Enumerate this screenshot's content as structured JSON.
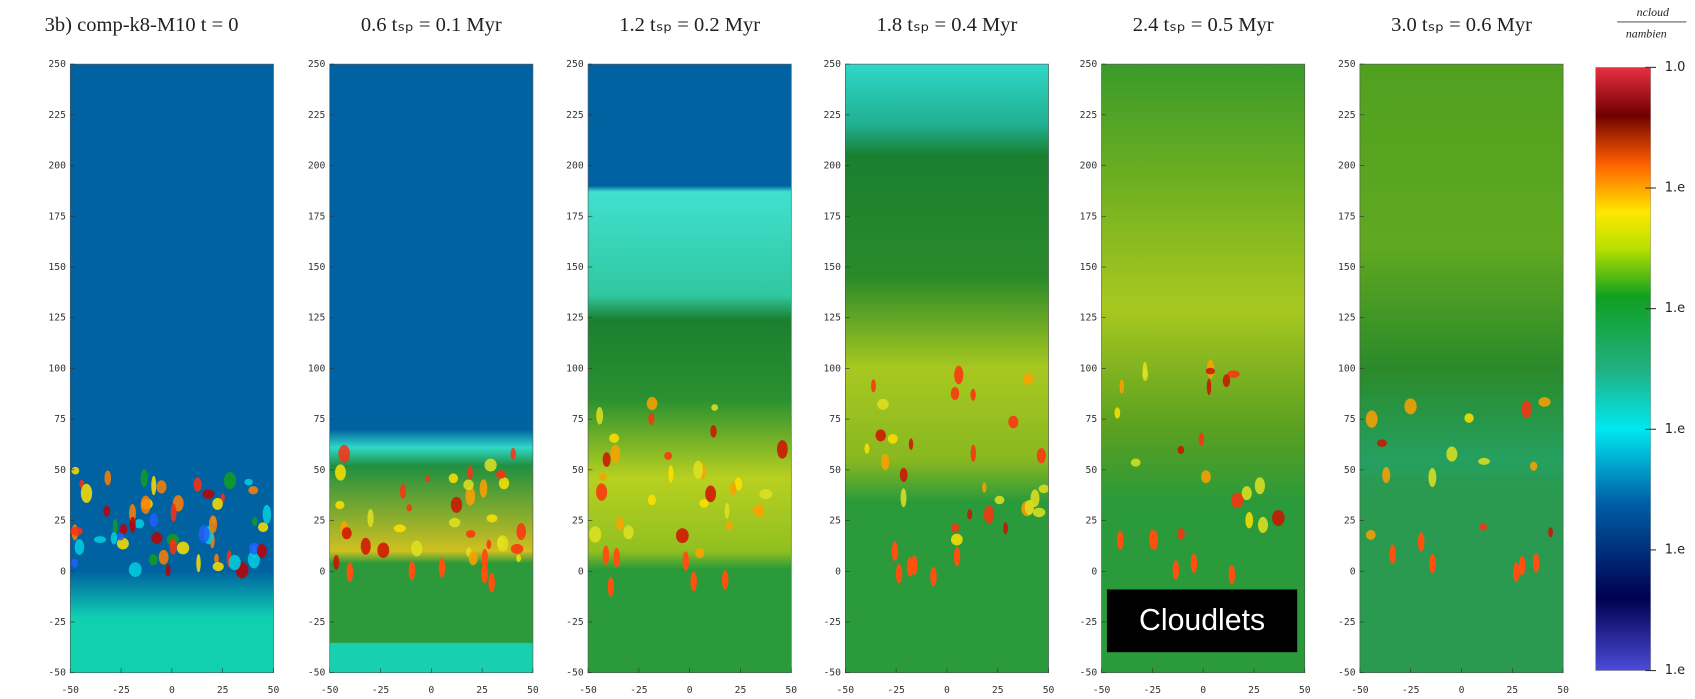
{
  "chart_data": [
    {
      "type": "image",
      "title": "3b) comp-k8-M10 t = 0",
      "xlim": [
        -50,
        50
      ],
      "ylim": [
        -50,
        250
      ],
      "xticks": [
        -50,
        -25,
        0,
        25,
        50
      ],
      "yticks": [
        -50,
        -25,
        0,
        25,
        50,
        75,
        100,
        125,
        150,
        175,
        200,
        225,
        250
      ]
    },
    {
      "type": "image",
      "title": "0.6 tₛₚ = 0.1 Myr",
      "xlim": [
        -50,
        50
      ],
      "ylim": [
        -50,
        250
      ],
      "xticks": [
        -50,
        -25,
        0,
        25,
        50
      ],
      "yticks": [
        -50,
        -25,
        0,
        25,
        50,
        75,
        100,
        125,
        150,
        175,
        200,
        225,
        250
      ]
    },
    {
      "type": "image",
      "title": "1.2 tₛₚ = 0.2 Myr",
      "xlim": [
        -50,
        50
      ],
      "ylim": [
        -50,
        250
      ],
      "xticks": [
        -50,
        -25,
        0,
        25,
        50
      ],
      "yticks": [
        -50,
        -25,
        0,
        25,
        50,
        75,
        100,
        125,
        150,
        175,
        200,
        225,
        250
      ]
    },
    {
      "type": "image",
      "title": "1.8 tₛₚ = 0.4 Myr",
      "xlim": [
        -50,
        50
      ],
      "ylim": [
        -50,
        250
      ],
      "xticks": [
        -50,
        -25,
        0,
        25,
        50
      ],
      "yticks": [
        -50,
        -25,
        0,
        25,
        50,
        75,
        100,
        125,
        150,
        175,
        200,
        225,
        250
      ]
    },
    {
      "type": "image",
      "title": "2.4 tₛₚ = 0.5 Myr",
      "annotation": "Cloudlets",
      "xlim": [
        -50,
        50
      ],
      "ylim": [
        -50,
        250
      ],
      "xticks": [
        -50,
        -25,
        0,
        25,
        50
      ],
      "yticks": [
        -50,
        -25,
        0,
        25,
        50,
        75,
        100,
        125,
        150,
        175,
        200,
        225,
        250
      ]
    },
    {
      "type": "image",
      "title": "3.0 tₛₚ = 0.6 Myr",
      "xlim": [
        -50,
        50
      ],
      "ylim": [
        -50,
        250
      ],
      "xticks": [
        -50,
        -25,
        0,
        25,
        50
      ],
      "yticks": [
        -50,
        -25,
        0,
        25,
        50,
        75,
        100,
        125,
        150,
        175,
        200,
        225,
        250
      ]
    }
  ],
  "colorbar": {
    "label_top": "ncloud",
    "label_bottom": "nambien",
    "ticks": [
      "1.0",
      "1.e",
      "1.e",
      "1.e",
      "1.e",
      "1.e"
    ]
  }
}
